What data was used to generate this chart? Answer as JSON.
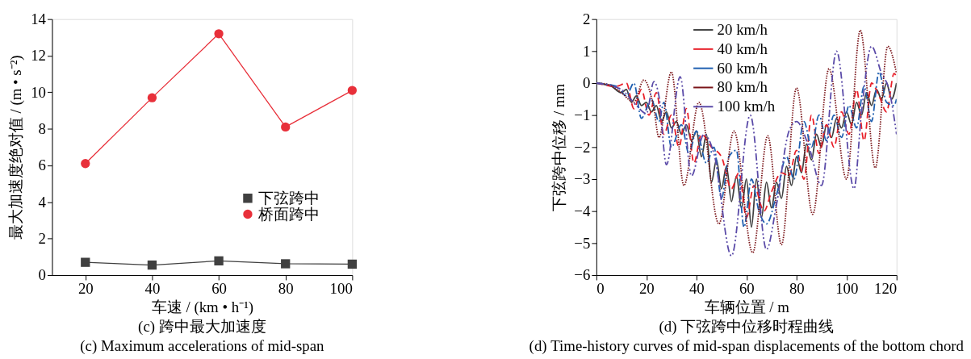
{
  "chart_data": [
    {
      "type": "line",
      "xlabel": "车速 / (km • h⁻¹)",
      "ylabel": "最大加速度绝对值 / (m • s⁻²)",
      "annotations": [
        "(c)  跨中最大加速度",
        "(c)  Maximum accelerations of mid-span"
      ],
      "x": [
        20,
        40,
        60,
        80,
        100
      ],
      "xlim": [
        10,
        100
      ],
      "xticks": [
        20,
        40,
        60,
        80,
        100
      ],
      "ylim": [
        0,
        14
      ],
      "yticks": [
        0,
        2,
        4,
        6,
        8,
        10,
        12,
        14
      ],
      "grid": false,
      "legend": "right",
      "series": [
        {
          "name": "下弦跨中",
          "color": "#404040",
          "marker": "square",
          "line_style": "solid",
          "values": [
            0.7,
            0.55,
            0.78,
            0.62,
            0.6
          ]
        },
        {
          "name": "桥面跨中",
          "color": "#e8303a",
          "marker": "circle",
          "line_style": "solid",
          "values": [
            6.1,
            9.7,
            13.2,
            8.1,
            10.1
          ]
        }
      ]
    },
    {
      "type": "line",
      "xlabel": "车辆位置 / m",
      "ylabel": "下弦跨中位移 / mm",
      "annotations": [
        "(d)  下弦跨中位移时程曲线",
        "(d)  Time-history curves of mid-span displacements of the bottom chord"
      ],
      "xlim": [
        0,
        120
      ],
      "xticks": [
        0,
        20,
        40,
        60,
        80,
        100,
        120
      ],
      "ylim": [
        -6,
        2
      ],
      "yticks": [
        {
          "value": -6,
          "label": "−6"
        },
        {
          "value": -5,
          "label": "−5"
        },
        {
          "value": -4,
          "label": "−4"
        },
        {
          "value": -3,
          "label": "−3"
        },
        {
          "value": -2,
          "label": "−2"
        },
        {
          "value": -1,
          "label": "−1"
        },
        0,
        1,
        2
      ],
      "grid": false,
      "legend": "top",
      "series": [
        {
          "name": "20 km/h",
          "color": "#404040",
          "marker": "none",
          "line_style": "solid",
          "x": [
            0,
            6,
            10,
            12,
            14,
            16,
            18,
            20,
            22,
            24,
            26,
            28,
            30,
            32,
            34,
            36,
            38,
            40,
            42,
            44,
            46,
            48,
            50,
            52,
            54,
            56,
            58,
            60,
            62,
            64,
            66,
            68,
            70,
            72,
            74,
            76,
            78,
            80,
            82,
            84,
            86,
            88,
            90,
            92,
            94,
            96,
            98,
            100,
            102,
            104,
            106,
            108,
            110,
            112,
            114,
            116,
            118,
            120
          ],
          "values": [
            0,
            -0.1,
            -0.3,
            -0.2,
            -0.6,
            -0.4,
            -0.7,
            -0.6,
            -0.9,
            -0.7,
            -1.2,
            -0.9,
            -1.4,
            -1.2,
            -1.6,
            -1.3,
            -1.8,
            -1.5,
            -2.3,
            -1.6,
            -3.1,
            -2.4,
            -3.3,
            -2.6,
            -3.7,
            -2.9,
            -3.9,
            -3.0,
            -4.5,
            -3.0,
            -4.2,
            -3.1,
            -3.9,
            -3.1,
            -3.6,
            -2.6,
            -3.2,
            -2.3,
            -2.8,
            -1.9,
            -2.4,
            -1.6,
            -2.0,
            -1.3,
            -1.7,
            -1.1,
            -1.4,
            -0.9,
            -1.3,
            -0.6,
            -1.0,
            -0.3,
            -0.7,
            -0.2,
            -0.5,
            0.0,
            -0.5,
            0.0
          ]
        },
        {
          "name": "40 km/h",
          "color": "#e8202a",
          "marker": "none",
          "line_style": "dashed",
          "x": [
            0,
            8,
            12,
            15,
            18,
            21,
            24,
            27,
            30,
            33,
            36,
            39,
            42,
            46,
            50,
            54,
            57,
            60,
            63,
            67,
            70,
            74,
            77,
            80,
            83,
            86,
            89,
            92,
            95,
            98,
            101,
            104,
            107,
            110,
            113,
            116,
            119,
            120
          ],
          "values": [
            0,
            -0.1,
            0.0,
            -0.8,
            -0.2,
            -1.0,
            -0.3,
            -1.6,
            -1.0,
            -2.0,
            -0.8,
            -2.5,
            -1.6,
            -2.0,
            -2.3,
            -3.3,
            -2.8,
            -4.2,
            -3.2,
            -4.0,
            -3.4,
            -2.8,
            -2.9,
            -2.1,
            -3.0,
            -1.0,
            -2.2,
            -1.3,
            -2.0,
            -0.9,
            -1.6,
            -0.2,
            -1.8,
            0.0,
            -0.4,
            -0.9,
            0.3,
            0.2
          ]
        },
        {
          "name": "60 km/h",
          "color": "#1f5fb0",
          "marker": "none",
          "line_style": "dashdot",
          "x": [
            0,
            8,
            12,
            15,
            18,
            22,
            25,
            27,
            30,
            34,
            37,
            40,
            44,
            47,
            50,
            53,
            56,
            59,
            62,
            65,
            68,
            72,
            76,
            79,
            83,
            86,
            89,
            92,
            95,
            98,
            101,
            104,
            107,
            110,
            113,
            116,
            119,
            120
          ],
          "values": [
            0,
            -0.1,
            -0.4,
            0.0,
            -1.1,
            -0.5,
            -1.2,
            -0.6,
            -2.0,
            -1.3,
            -2.2,
            -1.5,
            -2.5,
            -2.0,
            -3.6,
            -2.3,
            -2.1,
            -4.5,
            -3.0,
            -4.0,
            -4.4,
            -3.5,
            -2.3,
            -3.0,
            -1.2,
            -2.0,
            -1.0,
            -1.8,
            -1.0,
            -1.7,
            -0.7,
            -1.4,
            -0.1,
            -1.2,
            0.35,
            -0.6,
            -0.7,
            -0.5
          ]
        },
        {
          "name": "80 km/h",
          "color": "#7a1418",
          "marker": "none",
          "line_style": "dotted",
          "x": [
            0,
            5,
            10,
            15,
            19,
            23,
            25,
            30,
            35,
            41,
            49,
            55,
            62.5,
            68.5,
            74,
            80,
            86.5,
            93,
            100,
            105.5,
            111.5,
            116.5,
            120
          ],
          "values": [
            0,
            -0.05,
            -0.3,
            -0.6,
            0.1,
            -0.8,
            -1.7,
            0.35,
            -3.2,
            -0.6,
            -4.4,
            -1.5,
            -5.3,
            -1.65,
            -5.05,
            -0.15,
            -4.1,
            0.45,
            -3.0,
            1.65,
            -2.65,
            1.15,
            0.3
          ]
        },
        {
          "name": "100 km/h",
          "color": "#5a4aa8",
          "marker": "none",
          "line_style": "dashdotdot",
          "x": [
            0,
            10,
            16,
            20,
            23,
            25,
            28,
            33.5,
            38,
            43,
            47,
            54,
            61.5,
            68,
            72,
            77,
            80,
            85,
            90,
            96,
            103,
            106,
            110,
            114,
            117,
            120
          ],
          "values": [
            0,
            -0.2,
            -0.7,
            -0.95,
            0.05,
            -0.4,
            -2.55,
            0.2,
            -2.9,
            -1.6,
            -2.2,
            -5.4,
            -1.0,
            -5.2,
            -3.8,
            -1.5,
            -1.2,
            -2.0,
            -3.2,
            1.0,
            -3.3,
            -0.9,
            1.15,
            0.3,
            -0.2,
            -1.6
          ]
        }
      ]
    }
  ]
}
